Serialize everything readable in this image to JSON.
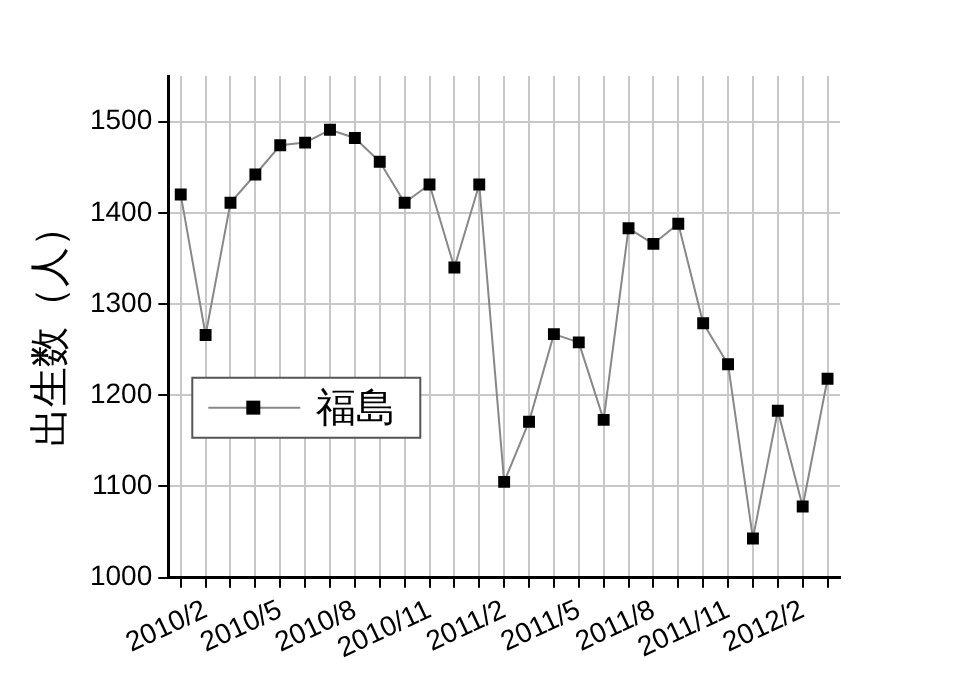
{
  "chart_data": {
    "type": "line",
    "ylabel": "出生数（人）",
    "categories": [
      null,
      "2010/2",
      null,
      null,
      "2010/5",
      null,
      null,
      "2010/8",
      null,
      null,
      "2010/11",
      null,
      null,
      "2011/2",
      null,
      null,
      "2011/5",
      null,
      null,
      "2011/8",
      null,
      null,
      "2011/11",
      null,
      null,
      "2012/2",
      null
    ],
    "series": [
      {
        "name": "福島",
        "color": "#000000",
        "values": [
          1420,
          1266,
          1411,
          1442,
          1474,
          1477,
          1491,
          1482,
          1456,
          1411,
          1431,
          1340,
          1431,
          1105,
          1171,
          1267,
          1258,
          1173,
          1383,
          1366,
          1388,
          1279,
          1234,
          1043,
          1183,
          1078,
          1218
        ]
      }
    ],
    "ylim": [
      1000,
      1550
    ],
    "yticks": [
      1000,
      1100,
      1200,
      1300,
      1400,
      1500
    ],
    "grid": true,
    "legend": "bottom left",
    "marker": "square",
    "line_style": "solid"
  }
}
